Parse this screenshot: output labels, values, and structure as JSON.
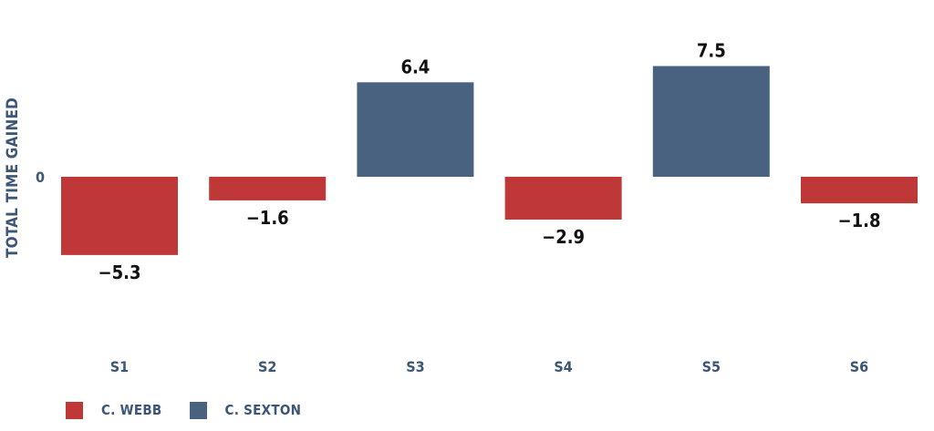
{
  "chart_data": {
    "type": "bar",
    "categories": [
      "S1",
      "S2",
      "S3",
      "S4",
      "S5",
      "S6"
    ],
    "values": [
      -5.3,
      -1.6,
      6.4,
      -2.9,
      7.5,
      -1.8
    ],
    "value_labels": [
      "−5.3",
      "−1.6",
      "6.4",
      "−2.9",
      "7.5",
      "−1.8"
    ],
    "bar_series": [
      "C. WEBB",
      "C. WEBB",
      "C. SEXTON",
      "C. WEBB",
      "C. SEXTON",
      "C. WEBB"
    ],
    "series": [
      {
        "name": "C. WEBB",
        "color": "#c03737"
      },
      {
        "name": "C. SEXTON",
        "color": "#48627f"
      }
    ],
    "ylabel": "TOTAL TIME GAINED",
    "xlabel": "",
    "zero_label": "0",
    "ylim": [
      -11,
      11
    ],
    "grid": false,
    "legend_position": "bottom-left"
  }
}
